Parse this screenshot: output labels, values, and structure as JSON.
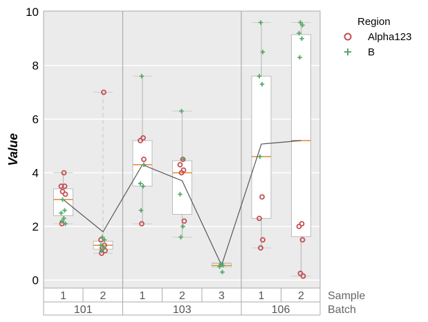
{
  "chart_data": {
    "type": "box",
    "title": "",
    "xlabel": "",
    "ylabel": "Value",
    "ylim": [
      -0.3,
      10
    ],
    "yticks": [
      "0",
      "2",
      "4",
      "6",
      "8",
      "10"
    ],
    "grid": true,
    "legend": {
      "title": "Region",
      "placement": "outside-top-right",
      "entries": [
        {
          "name": "Alpha123",
          "marker": "circle",
          "color": "#c44e52"
        },
        {
          "name": "B",
          "marker": "plus",
          "color": "#55a868"
        }
      ]
    },
    "x_levels": [
      {
        "name": "Sample",
        "labels": [
          "1",
          "2",
          "1",
          "2",
          "3",
          "1",
          "2"
        ]
      },
      {
        "name": "Batch",
        "groups": [
          {
            "label": "101",
            "span": 2
          },
          {
            "label": "103",
            "span": 3
          },
          {
            "label": "106",
            "span": 2
          }
        ]
      }
    ],
    "boxes": [
      {
        "batch": "101",
        "sample": "1",
        "q1": 2.4,
        "median": 3.0,
        "q3": 3.4,
        "whisker_low": 2.1,
        "whisker_high": 4.0,
        "whisker_style": "solid",
        "Alpha123": [
          4.0,
          3.5,
          3.5,
          3.3,
          3.2,
          2.1
        ],
        "B": [
          3.0,
          2.6,
          2.5,
          2.3,
          2.2,
          2.1
        ]
      },
      {
        "batch": "101",
        "sample": "2",
        "q1": 1.15,
        "median": 1.3,
        "q3": 1.45,
        "whisker_low": 1.0,
        "whisker_high": 7.0,
        "whisker_style": "dashed",
        "Alpha123": [
          7.0,
          1.5,
          1.3,
          1.2,
          1.1,
          1.0
        ],
        "B": [
          1.6,
          1.5,
          1.3,
          1.2,
          1.1
        ]
      },
      {
        "batch": "103",
        "sample": "1",
        "q1": 3.5,
        "median": 4.3,
        "q3": 5.2,
        "whisker_low": 2.1,
        "whisker_high": 7.6,
        "whisker_style": "solid",
        "Alpha123": [
          5.3,
          5.2,
          4.5,
          2.1
        ],
        "B": [
          7.6,
          4.3,
          3.6,
          3.5,
          2.6
        ]
      },
      {
        "batch": "103",
        "sample": "2",
        "q1": 2.45,
        "median": 4.0,
        "q3": 4.45,
        "whisker_low": 1.6,
        "whisker_high": 6.3,
        "whisker_style": "solid",
        "Alpha123": [
          4.5,
          4.3,
          4.1,
          4.0,
          2.2
        ],
        "B": [
          6.3,
          4.5,
          3.2,
          2.0,
          1.6
        ]
      },
      {
        "batch": "103",
        "sample": "3",
        "q1": 0.5,
        "median": 0.55,
        "q3": 0.62,
        "whisker_low": 0.5,
        "whisker_high": 0.65,
        "whisker_style": "solid",
        "Alpha123": [],
        "B": [
          0.6,
          0.55,
          0.5,
          0.3
        ]
      },
      {
        "batch": "106",
        "sample": "1",
        "q1": 2.3,
        "median": 4.6,
        "q3": 7.6,
        "whisker_low": 1.2,
        "whisker_high": 9.6,
        "whisker_style": "solid",
        "Alpha123": [
          3.1,
          2.3,
          1.5,
          1.2
        ],
        "B": [
          9.6,
          8.5,
          7.6,
          7.3,
          4.6
        ]
      },
      {
        "batch": "106",
        "sample": "2",
        "q1": 1.62,
        "median": 5.2,
        "q3": 9.15,
        "whisker_low": 0.15,
        "whisker_high": 9.6,
        "whisker_style": "solid",
        "Alpha123": [
          2.1,
          2.0,
          1.5,
          0.25,
          0.15
        ],
        "B": [
          9.6,
          9.5,
          9.2,
          9.0,
          8.3
        ]
      }
    ],
    "median_line": {
      "values": [
        3.0,
        1.8,
        4.3,
        3.7,
        0.55,
        5.07,
        5.2
      ],
      "color": "#555555"
    },
    "colors": {
      "background": "#ebebeb",
      "box_fill": "#ffffff",
      "box_edge": "#bbbbbb",
      "median": "#e08a2a",
      "divider": "#aaaaaa"
    }
  }
}
